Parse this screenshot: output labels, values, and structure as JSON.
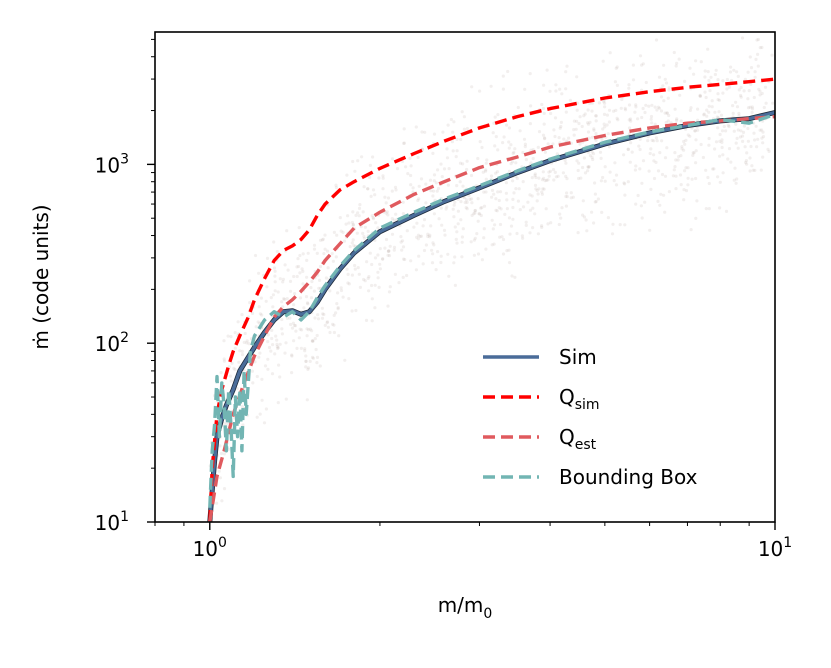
{
  "chart_data": {
    "type": "line",
    "title": "",
    "xlabel": "m/m",
    "xlabel_sub": "0",
    "ylabel": "ṁ (code units)",
    "xscale": "log",
    "yscale": "log",
    "xlim": [
      0.8,
      10
    ],
    "ylim": [
      10,
      5500
    ],
    "xticks": [
      {
        "value": 1,
        "base": "10",
        "exp": "0"
      },
      {
        "value": 10,
        "base": "10",
        "exp": "1"
      }
    ],
    "yticks": [
      {
        "value": 10,
        "base": "10",
        "exp": "1"
      },
      {
        "value": 100,
        "base": "10",
        "exp": "2"
      },
      {
        "value": 1000,
        "base": "10",
        "exp": "3"
      }
    ],
    "grid": false,
    "legend": {
      "position": "lower-right"
    },
    "series": [
      {
        "name": "Sim",
        "sub": "",
        "style": "solid",
        "color": "#4a6c99",
        "x": [
          1.0,
          1.01,
          1.02,
          1.03,
          1.05,
          1.07,
          1.1,
          1.13,
          1.16,
          1.2,
          1.25,
          1.3,
          1.35,
          1.4,
          1.45,
          1.5,
          1.55,
          1.6,
          1.7,
          1.8,
          2.0,
          2.3,
          2.6,
          3.0,
          3.5,
          4.0,
          5.0,
          6.0,
          7.0,
          8.0,
          9.0,
          10.0
        ],
        "y": [
          10,
          15,
          22,
          30,
          38,
          45,
          55,
          70,
          80,
          95,
          115,
          135,
          150,
          152,
          145,
          150,
          170,
          200,
          260,
          320,
          420,
          520,
          620,
          740,
          900,
          1050,
          1300,
          1500,
          1650,
          1750,
          1800,
          1950
        ]
      },
      {
        "name": "Q",
        "sub": "sim",
        "style": "dashed",
        "color": "#ff0000",
        "x": [
          1.0,
          1.01,
          1.03,
          1.05,
          1.08,
          1.1,
          1.13,
          1.17,
          1.2,
          1.25,
          1.3,
          1.35,
          1.4,
          1.45,
          1.5,
          1.55,
          1.6,
          1.7,
          1.8,
          2.0,
          2.3,
          2.6,
          3.0,
          3.5,
          4.0,
          5.0,
          6.0,
          7.0,
          8.0,
          9.0,
          10.0
        ],
        "y": [
          10,
          20,
          40,
          55,
          75,
          90,
          110,
          140,
          175,
          230,
          290,
          330,
          350,
          380,
          430,
          520,
          600,
          720,
          800,
          950,
          1150,
          1350,
          1600,
          1850,
          2050,
          2350,
          2550,
          2700,
          2800,
          2900,
          3000
        ]
      },
      {
        "name": "Q",
        "sub": "est",
        "style": "dashed",
        "color": "#e05a5e",
        "x": [
          1.0,
          1.03,
          1.06,
          1.1,
          1.15,
          1.2,
          1.25,
          1.3,
          1.35,
          1.4,
          1.45,
          1.5,
          1.55,
          1.6,
          1.7,
          1.8,
          2.0,
          2.3,
          2.6,
          3.0,
          3.5,
          4.0,
          5.0,
          6.0,
          7.0,
          8.0,
          9.0,
          10.0
        ],
        "y": [
          10,
          18,
          25,
          40,
          60,
          85,
          110,
          140,
          160,
          175,
          195,
          220,
          250,
          290,
          360,
          440,
          540,
          680,
          800,
          960,
          1100,
          1250,
          1450,
          1600,
          1700,
          1750,
          1800,
          1850
        ]
      },
      {
        "name": "Bounding Box",
        "sub": "",
        "style": "dashed",
        "color": "#72b5b3",
        "x": [
          1.0,
          1.01,
          1.02,
          1.03,
          1.04,
          1.05,
          1.06,
          1.07,
          1.08,
          1.09,
          1.1,
          1.11,
          1.12,
          1.13,
          1.14,
          1.15,
          1.16,
          1.18,
          1.2,
          1.25,
          1.3,
          1.35,
          1.4,
          1.45,
          1.5,
          1.55,
          1.6,
          1.7,
          1.8,
          2.0,
          2.3,
          2.6,
          3.0,
          3.5,
          4.0,
          5.0,
          6.0,
          7.0,
          8.0,
          9.0,
          10.0
        ],
        "y": [
          12,
          25,
          35,
          65,
          30,
          60,
          45,
          25,
          55,
          35,
          18,
          50,
          30,
          55,
          25,
          70,
          40,
          90,
          110,
          135,
          150,
          140,
          150,
          135,
          150,
          180,
          210,
          270,
          330,
          440,
          540,
          640,
          760,
          920,
          1070,
          1330,
          1520,
          1650,
          1780,
          1700,
          1900
        ]
      }
    ]
  }
}
